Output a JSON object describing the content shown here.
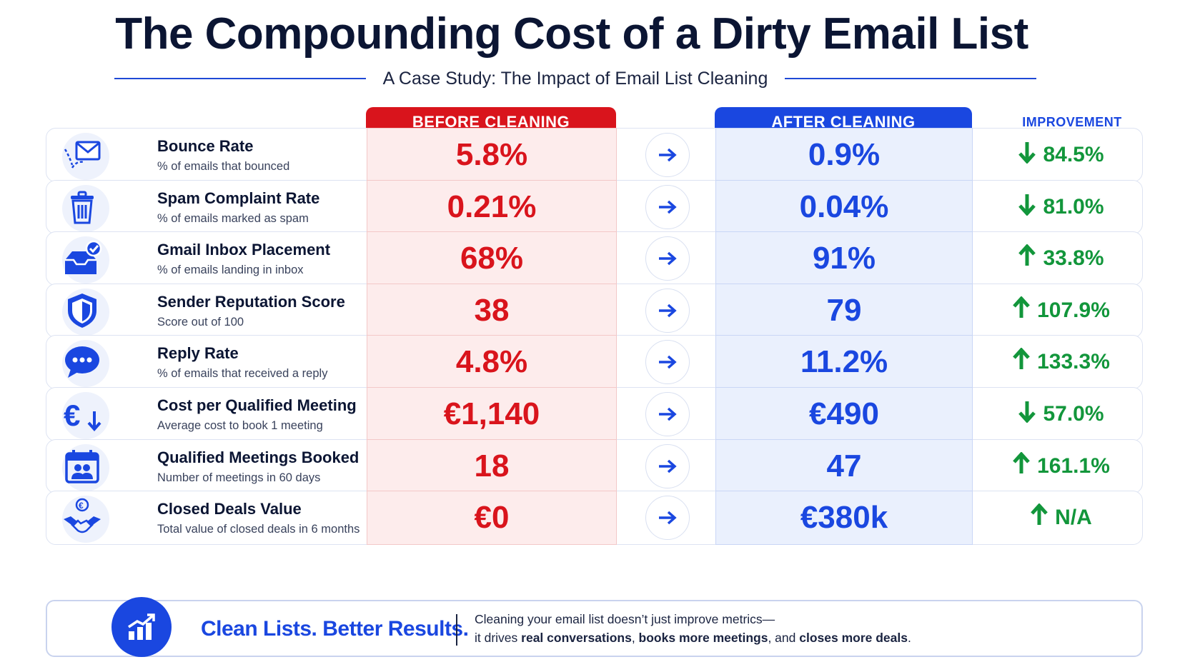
{
  "header": {
    "title": "The Compounding Cost of a Dirty Email List",
    "subtitle": "A Case Study: The Impact of Email List Cleaning"
  },
  "columns": {
    "before": "BEFORE CLEANING",
    "after": "AFTER CLEANING",
    "improvement": "IMPROVEMENT"
  },
  "colors": {
    "before": "#d9141c",
    "after": "#1a47e0",
    "improvement": "#12963b",
    "title": "#0b1533"
  },
  "rows": [
    {
      "icon": "envelope-icon",
      "name": "Bounce Rate",
      "desc": "% of emails that bounced",
      "before": "5.8%",
      "after": "0.9%",
      "direction": "down",
      "improvement": "84.5%"
    },
    {
      "icon": "trash-icon",
      "name": "Spam Complaint Rate",
      "desc": "% of emails marked as spam",
      "before": "0.21%",
      "after": "0.04%",
      "direction": "down",
      "improvement": "81.0%"
    },
    {
      "icon": "inbox-check-icon",
      "name": "Gmail Inbox Placement",
      "desc": "% of emails landing in inbox",
      "before": "68%",
      "after": "91%",
      "direction": "up",
      "improvement": "33.8%"
    },
    {
      "icon": "shield-icon",
      "name": "Sender Reputation Score",
      "desc": "Score out of 100",
      "before": "38",
      "after": "79",
      "direction": "up",
      "improvement": "107.9%"
    },
    {
      "icon": "chat-bubble-icon",
      "name": "Reply Rate",
      "desc": "% of emails that received a reply",
      "before": "4.8%",
      "after": "11.2%",
      "direction": "up",
      "improvement": "133.3%"
    },
    {
      "icon": "euro-down-icon",
      "name": "Cost per Qualified Meeting",
      "desc": "Average cost to book 1 meeting",
      "before": "€1,140",
      "after": "€490",
      "direction": "down",
      "improvement": "57.0%"
    },
    {
      "icon": "calendar-people-icon",
      "name": "Qualified Meetings Booked",
      "desc": "Number of meetings in 60 days",
      "before": "18",
      "after": "47",
      "direction": "up",
      "improvement": "161.1%"
    },
    {
      "icon": "handshake-euro-icon",
      "name": "Closed Deals Value",
      "desc": "Total value of closed deals in 6 months",
      "before": "€0",
      "after": "€380k",
      "direction": "up",
      "improvement": "N/A"
    }
  ],
  "footer": {
    "icon": "growth-chart-icon",
    "tagline": "Clean Lists. Better Results.",
    "line1": "Cleaning your email list doesn’t just improve metrics—",
    "line2_prefix": "it drives ",
    "line2_b1": "real conversations",
    "line2_sep1": ", ",
    "line2_b2": "books more meetings",
    "line2_sep2": ", and ",
    "line2_b3": "closes more deals",
    "line2_end": "."
  }
}
